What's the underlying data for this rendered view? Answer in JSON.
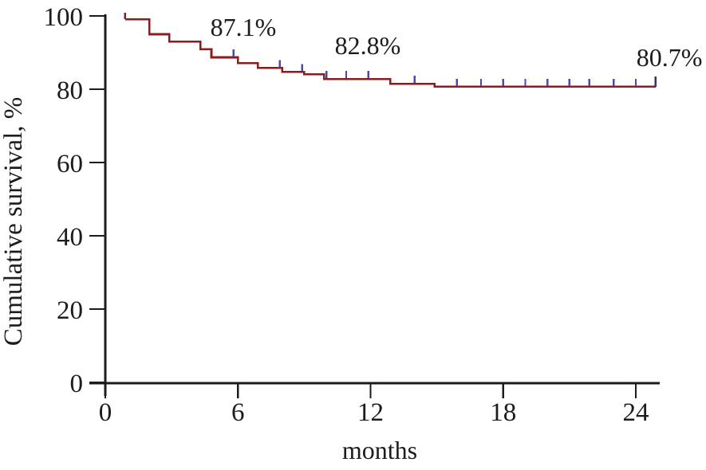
{
  "figure": {
    "background": "#ffffff"
  },
  "chart_data": {
    "type": "line",
    "subtype": "kaplan-meier-step-curve",
    "title": "",
    "xlabel": "months",
    "ylabel": "Cumulative survival, %",
    "x_ticks": [
      0,
      6,
      12,
      18,
      24
    ],
    "y_ticks": [
      0,
      20,
      40,
      60,
      80,
      100
    ],
    "xlim": [
      0,
      25.2
    ],
    "ylim": [
      0,
      100
    ],
    "grid": false,
    "legend": null,
    "colors": {
      "curve": "#8a1e1e",
      "censor": "#4a4aae",
      "end_tick": "#333366",
      "axis": "#1c1c1c"
    },
    "series": [
      {
        "name": "cumulative-survival",
        "start": {
          "month": 0.9,
          "pct": 99.1
        },
        "steps": [
          [
            2.0,
            95.0
          ],
          [
            2.9,
            93.0
          ],
          [
            4.3,
            90.9
          ],
          [
            4.8,
            88.7
          ],
          [
            6.0,
            87.1
          ],
          [
            6.9,
            85.8
          ],
          [
            8.0,
            84.7
          ],
          [
            9.0,
            84.1
          ],
          [
            9.9,
            82.8
          ],
          [
            12.9,
            81.5
          ],
          [
            14.9,
            80.7
          ]
        ],
        "end_month": 24.9,
        "end_pct": 80.7
      }
    ],
    "censor_marks": {
      "months": [
        5.8,
        7.9,
        8.9,
        10.0,
        10.9,
        11.9,
        14.0,
        15.9,
        17.0,
        18.0,
        19.0,
        20.0,
        21.0,
        21.9,
        23.0,
        24.0
      ]
    },
    "annotations": [
      {
        "text": "87.1%",
        "month": 6.24,
        "pct": 94.6
      },
      {
        "text": "82.8%",
        "month": 11.87,
        "pct": 89.6
      },
      {
        "text": "80.7%",
        "month": 25.52,
        "pct": 86.3
      }
    ]
  }
}
